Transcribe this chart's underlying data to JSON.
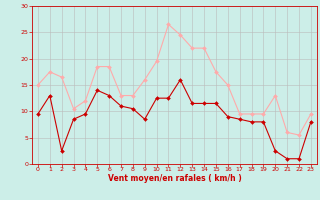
{
  "x": [
    0,
    1,
    2,
    3,
    4,
    5,
    6,
    7,
    8,
    9,
    10,
    11,
    12,
    13,
    14,
    15,
    16,
    17,
    18,
    19,
    20,
    21,
    22,
    23
  ],
  "wind_avg": [
    9.5,
    13,
    2.5,
    8.5,
    9.5,
    14,
    13,
    11,
    10.5,
    8.5,
    12.5,
    12.5,
    16,
    11.5,
    11.5,
    11.5,
    9,
    8.5,
    8,
    8,
    2.5,
    1,
    1,
    8
  ],
  "wind_gust": [
    15,
    17.5,
    16.5,
    10.5,
    12,
    18.5,
    18.5,
    13,
    13,
    16,
    19.5,
    26.5,
    24.5,
    22,
    22,
    17.5,
    15,
    9.5,
    9.5,
    9.5,
    13,
    6,
    5.5,
    9.5
  ],
  "color_avg": "#cc0000",
  "color_gust": "#ffaaaa",
  "background": "#cceee8",
  "grid_color": "#bbbbbb",
  "xlabel": "Vent moyen/en rafales ( km/h )",
  "xlabel_color": "#cc0000",
  "tick_color": "#cc0000",
  "ylim": [
    0,
    30
  ],
  "yticks": [
    0,
    5,
    10,
    15,
    20,
    25,
    30
  ],
  "xlim": [
    -0.5,
    23.5
  ],
  "xticks": [
    0,
    1,
    2,
    3,
    4,
    5,
    6,
    7,
    8,
    9,
    10,
    11,
    12,
    13,
    14,
    15,
    16,
    17,
    18,
    19,
    20,
    21,
    22,
    23
  ]
}
